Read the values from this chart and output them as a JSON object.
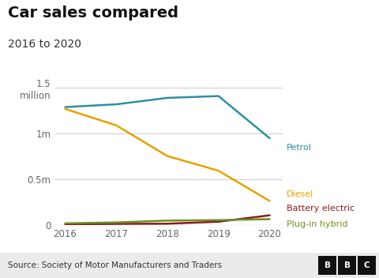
{
  "title": "Car sales compared",
  "subtitle": "2016 to 2020",
  "source": "Source: Society of Motor Manufacturers and Traders",
  "years": [
    2016,
    2017,
    2018,
    2019,
    2020
  ],
  "petrol": [
    1290000,
    1320000,
    1390000,
    1410000,
    950000
  ],
  "diesel": [
    1270000,
    1090000,
    755000,
    595000,
    265000
  ],
  "battery_electric": [
    10000,
    14000,
    16000,
    38000,
    108000
  ],
  "plug_in_hybrid": [
    20000,
    30000,
    50000,
    55000,
    66000
  ],
  "colors": {
    "petrol": "#2E8FA3",
    "diesel": "#E8A000",
    "battery_electric": "#8B1A1A",
    "plug_in_hybrid": "#6B8E23"
  },
  "ylim": [
    0,
    1700000
  ],
  "yticks": [
    0,
    500000,
    1000000,
    1500000
  ],
  "background_color": "#ffffff",
  "grid_color": "#cccccc",
  "title_fontsize": 14,
  "subtitle_fontsize": 10,
  "tick_fontsize": 8.5,
  "label_fontsize": 8,
  "source_fontsize": 7.5,
  "footer_color": "#ebebeb"
}
